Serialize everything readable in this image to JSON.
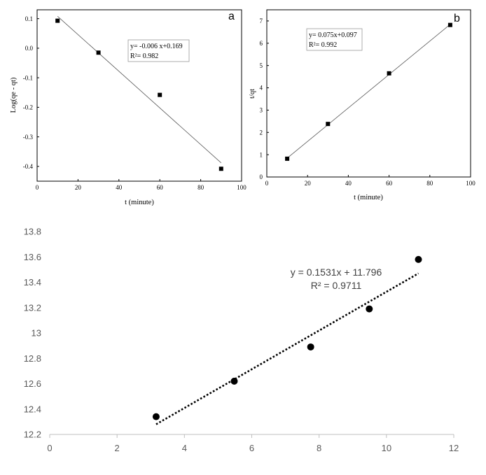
{
  "chart_data": [
    {
      "id": "a",
      "type": "scatter",
      "panel_label": "a",
      "xlabel": "t (minute)",
      "ylabel": "Log(qe - qt)",
      "xlim": [
        0,
        100
      ],
      "ylim": [
        -0.45,
        0.13
      ],
      "xticks": [
        0,
        20,
        40,
        60,
        80,
        100
      ],
      "yticks": [
        -0.4,
        -0.3,
        -0.2,
        -0.1,
        0.0,
        0.1
      ],
      "ytick_labels": [
        "-0.4",
        "-0.3",
        "-0.2",
        "-0.1",
        "0.0",
        "0.1"
      ],
      "points": [
        {
          "x": 10,
          "y": 0.093
        },
        {
          "x": 30,
          "y": -0.015
        },
        {
          "x": 60,
          "y": -0.158
        },
        {
          "x": 90,
          "y": -0.408
        }
      ],
      "trendline": {
        "x": [
          10,
          90
        ],
        "y": [
          0.108,
          -0.388
        ]
      },
      "equation": "y= -0.006 x+0.169",
      "r2": "R²= 0.982",
      "grid": false,
      "marker": "square"
    },
    {
      "id": "b",
      "type": "scatter",
      "panel_label": "b",
      "xlabel": "t (minute)",
      "ylabel": "t/qt",
      "xlim": [
        0,
        100
      ],
      "ylim": [
        0,
        7.5
      ],
      "xticks": [
        0,
        20,
        40,
        60,
        80,
        100
      ],
      "yticks": [
        0,
        1,
        2,
        3,
        4,
        5,
        6,
        7
      ],
      "ytick_labels": [
        "0",
        "1",
        "2",
        "3",
        "4",
        "5",
        "6",
        "7"
      ],
      "points": [
        {
          "x": 10,
          "y": 0.82
        },
        {
          "x": 30,
          "y": 2.38
        },
        {
          "x": 60,
          "y": 4.65
        },
        {
          "x": 90,
          "y": 6.82
        }
      ],
      "trendline": {
        "x": [
          10,
          90
        ],
        "y": [
          0.847,
          6.847
        ]
      },
      "equation": "y= 0.075x+0.097",
      "r2": "R²= 0.992",
      "grid": false,
      "marker": "square"
    },
    {
      "id": "c",
      "type": "scatter",
      "xlabel": "",
      "ylabel": "",
      "xlim": [
        0,
        12
      ],
      "ylim": [
        12.2,
        13.8
      ],
      "xticks": [
        0,
        2,
        4,
        6,
        8,
        10,
        12
      ],
      "yticks": [
        12.2,
        12.4,
        12.6,
        12.8,
        13.0,
        13.2,
        13.4,
        13.6,
        13.8
      ],
      "ytick_labels": [
        "12.2",
        "12.4",
        "12.6",
        "12.8",
        "13",
        "13.2",
        "13.4",
        "13.6",
        "13.8"
      ],
      "points": [
        {
          "x": 3.16,
          "y": 12.34
        },
        {
          "x": 5.48,
          "y": 12.62
        },
        {
          "x": 7.75,
          "y": 12.89
        },
        {
          "x": 9.49,
          "y": 13.19
        },
        {
          "x": 10.95,
          "y": 13.58
        }
      ],
      "trendline": {
        "x": [
          3.16,
          10.95
        ],
        "y": [
          12.28,
          13.47
        ]
      },
      "equation": "y = 0.1531x + 11.796",
      "r2": "R² = 0.9711",
      "grid": false,
      "marker": "circle",
      "trend_style": "dotted"
    }
  ]
}
